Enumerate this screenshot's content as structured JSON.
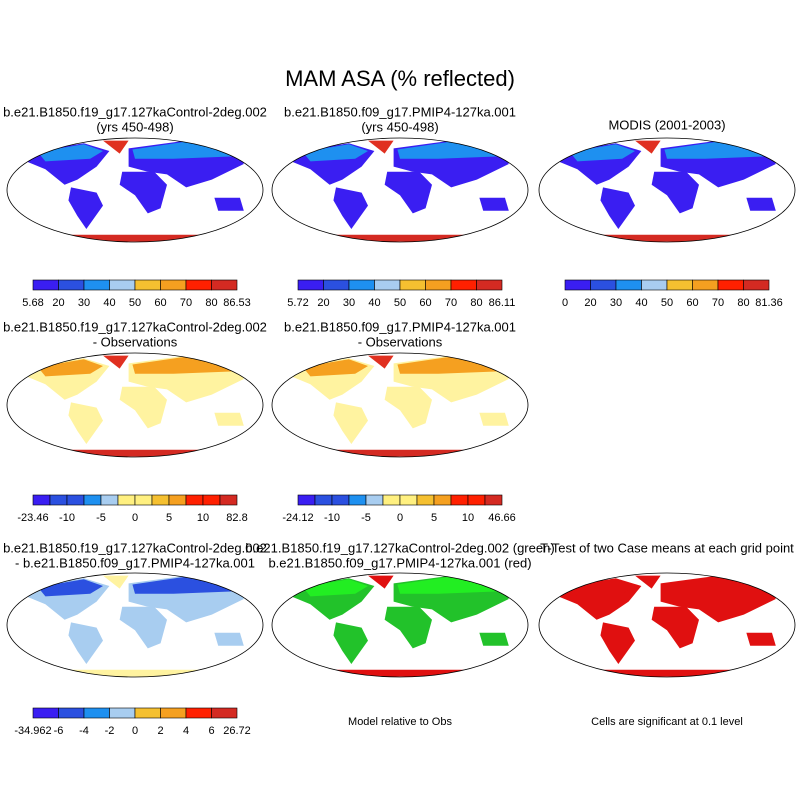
{
  "title": "MAM ASA (% reflected)",
  "panels": [
    {
      "title": [
        "b.e21.B1850.f19_g17.127kaControl-2deg.002",
        "(yrs 450-498)"
      ],
      "colorbar": [
        "5.68",
        "20",
        "30",
        "40",
        "50",
        "60",
        "70",
        "80",
        "86.53"
      ]
    },
    {
      "title": [
        "b.e21.B1850.f09_g17.PMIP4-127ka.001",
        "(yrs 450-498)"
      ],
      "colorbar": [
        "5.72",
        "20",
        "30",
        "40",
        "50",
        "60",
        "70",
        "80",
        "86.11"
      ]
    },
    {
      "title": [
        "MODIS (2001-2003)"
      ],
      "colorbar": [
        "0",
        "20",
        "30",
        "40",
        "50",
        "60",
        "70",
        "80",
        "81.36"
      ]
    },
    {
      "title": [
        "b.e21.B1850.f19_g17.127kaControl-2deg.002",
        "- Observations"
      ],
      "colorbar": [
        "-23.46",
        "-10",
        "-5",
        "0",
        "5",
        "10",
        "82.8"
      ]
    },
    {
      "title": [
        "b.e21.B1850.f09_g17.PMIP4-127ka.001",
        "- Observations"
      ],
      "colorbar": [
        "-24.12",
        "-10",
        "-5",
        "0",
        "5",
        "10",
        "46.66"
      ]
    },
    {
      "title": [
        "b.e21.B1850.f19_g17.127kaControl-2deg.002",
        "- b.e21.B1850.f09_g17.PMIP4-127ka.001"
      ],
      "colorbar": [
        "-34.962",
        "-6",
        "-4",
        "-2",
        "0",
        "2",
        "4",
        "6",
        "26.72"
      ]
    },
    {
      "title": [
        "b.e21.B1850.f19_g17.127kaControl-2deg.002 (green)",
        "b.e21.B1850.f09_g17.PMIP4-127ka.001 (red)"
      ],
      "note": "Model relative to Obs"
    },
    {
      "title": [
        "T-Test of two Case means at each grid point"
      ],
      "note": "Cells are significant at 0.1 level"
    }
  ]
}
